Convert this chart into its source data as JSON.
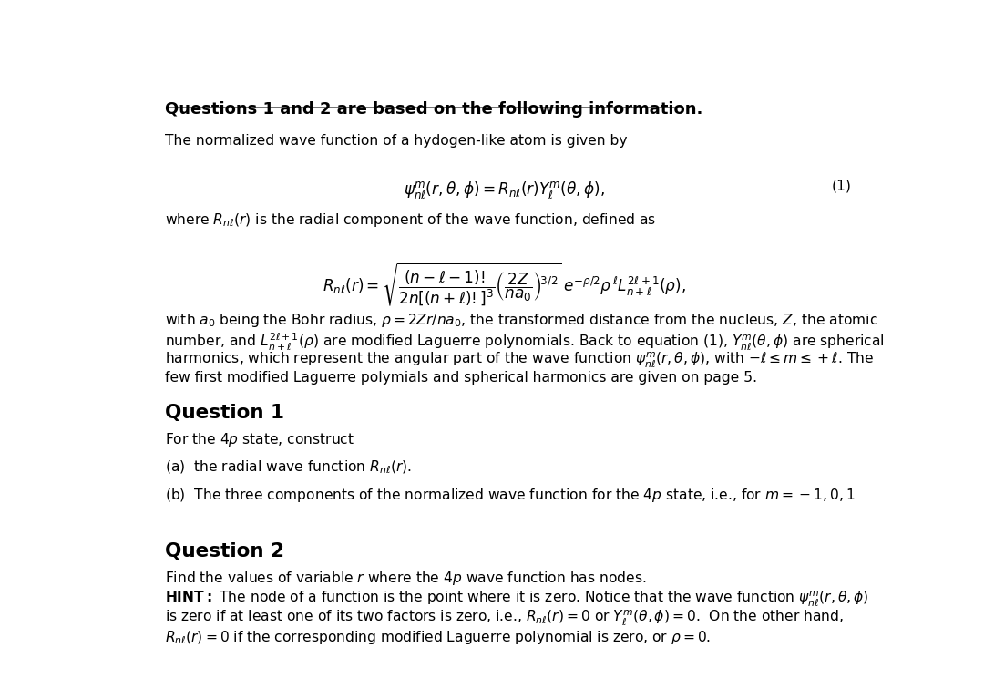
{
  "bg_color": "#ffffff",
  "fig_width": 10.8,
  "fig_height": 7.56,
  "dpi": 100,
  "title_line": "Questions 1 and 2 are based on the following information.",
  "intro_line": "The normalized wave function of a hydogen-like atom is given by",
  "eq1_label": "(1)",
  "where_line": "where $R_{n\\ell}(r)$ is the radial component of the wave function, defined as",
  "body_line1": "with $a_0$ being the Bohr radius, $\\rho = 2Zr/na_0$, the transformed distance from the nucleus, $Z$, the atomic",
  "body_line2": "number, and $L_{n+\\ell}^{2\\ell+1}(\\rho)$ are modified Laguerre polynomials. Back to equation (1), $Y_{n\\ell}^{m}(\\theta,\\phi)$ are spherical",
  "body_line3": "harmonics, which represent the angular part of the wave function $\\psi_{n\\ell}^{m}(r,\\theta,\\phi)$, with $-\\ell \\leq m \\leq +\\ell$. The",
  "body_line4": "few first modified Laguerre polymials and spherical harmonics are given on page 5.",
  "q1_title": "Question 1",
  "q1_intro": "For the $4p$ state, construct",
  "q1a": "(a)  the radial wave function $R_{n\\ell}(r)$.",
  "q1b": "(b)  The three components of the normalized wave function for the $4p$ state, i.e., for $m = -1,0,1$",
  "q2_title": "Question 2",
  "q2_intro": "Find the values of variable $r$ where the $4p$ wave function has nodes.",
  "q2_hint1": "\\textbf{HINT:} The node of a function is the point where it is zero. Notice that the wave function $\\psi_{n\\ell}^{m}(r,\\theta,\\phi)$",
  "q2_hint2": "is zero if at least one of its two factors is zero, i.e., $R_{n\\ell}(r) = 0$ or $Y_{\\ell}^{m}(\\theta,\\phi) = 0$.  On the other hand,",
  "q2_hint3": "$R_{n\\ell}(r) = 0$ if the corresponding modified Laguerre polynomial is zero, or $\\rho = 0$."
}
